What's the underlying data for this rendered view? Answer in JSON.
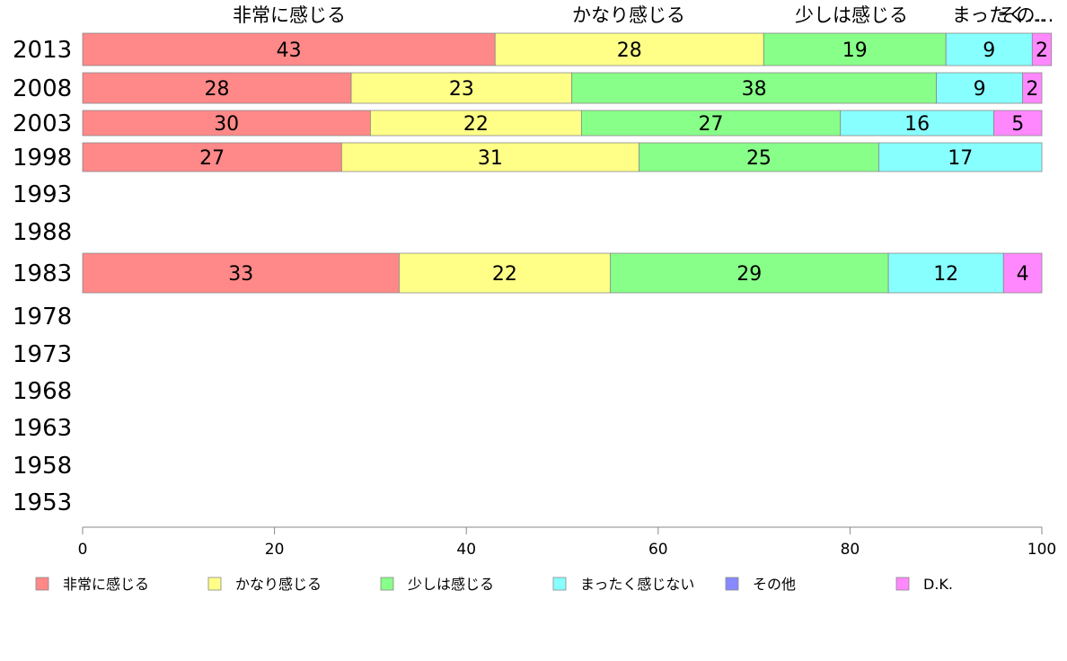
{
  "chart_data": {
    "type": "bar",
    "orientation": "horizontal",
    "stacked": true,
    "categories": [
      "2013",
      "2008",
      "2003",
      "1998",
      "1993",
      "1988",
      "1983",
      "1978",
      "1973",
      "1968",
      "1963",
      "1958",
      "1953"
    ],
    "series": [
      {
        "name": "非常に感じる",
        "color": "#ff8888",
        "values": [
          43,
          28,
          30,
          27,
          null,
          null,
          33,
          null,
          null,
          null,
          null,
          null,
          null
        ]
      },
      {
        "name": "かなり感じる",
        "color": "#ffff88",
        "values": [
          28,
          23,
          22,
          31,
          null,
          null,
          22,
          null,
          null,
          null,
          null,
          null,
          null
        ]
      },
      {
        "name": "少しは感じる",
        "color": "#88ff88",
        "values": [
          19,
          38,
          27,
          25,
          null,
          null,
          29,
          null,
          null,
          null,
          null,
          null,
          null
        ]
      },
      {
        "name": "まったく感じない",
        "color": "#88ffff",
        "values": [
          9,
          9,
          16,
          17,
          null,
          null,
          12,
          null,
          null,
          null,
          null,
          null,
          null
        ]
      },
      {
        "name": "その他",
        "color": "#8888ff",
        "values": [
          0,
          0,
          0,
          0,
          null,
          null,
          0,
          null,
          null,
          null,
          null,
          null,
          null
        ]
      },
      {
        "name": "D.K.",
        "color": "#ff88ff",
        "values": [
          2,
          2,
          5,
          0,
          null,
          null,
          4,
          null,
          null,
          null,
          null,
          null,
          null
        ]
      }
    ],
    "top_labels": [
      "非常に感じる",
      "かなり感じる",
      "少しは感じる",
      "まったく…",
      "その…"
    ],
    "xlim": [
      0,
      100
    ],
    "xticks": [
      0,
      20,
      40,
      60,
      80,
      100
    ],
    "grid": false,
    "legend_position": "bottom"
  }
}
